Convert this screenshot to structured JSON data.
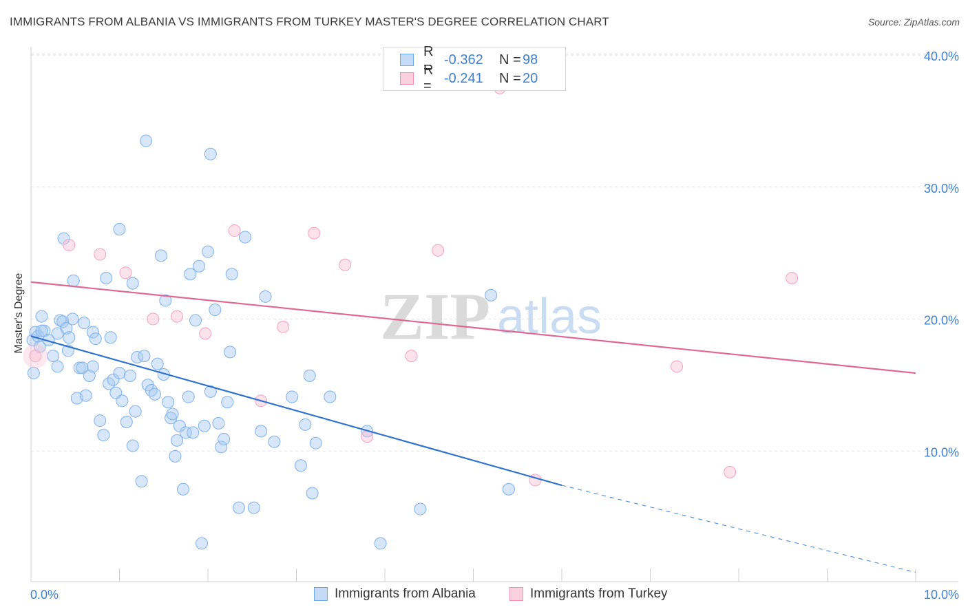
{
  "title": "IMMIGRANTS FROM ALBANIA VS IMMIGRANTS FROM TURKEY MASTER'S DEGREE CORRELATION CHART",
  "source": "Source: ZipAtlas.com",
  "watermark": {
    "zip": "ZIP",
    "atlas": "atlas"
  },
  "legend_box": {
    "rows": [
      {
        "r_label": "R =",
        "r_value": "-0.362",
        "n_label": "N =",
        "n_value": "98",
        "color": "#6fa8e8"
      },
      {
        "r_label": "R =",
        "r_value": "-0.241",
        "n_label": "N =",
        "n_value": "20",
        "color": "#f28fb0"
      }
    ]
  },
  "bottom_legend": [
    "Immigrants from Albania",
    "Immigrants from Turkey"
  ],
  "chart_data": {
    "type": "scatter",
    "title": "IMMIGRANTS FROM ALBANIA VS IMMIGRANTS FROM TURKEY MASTER'S DEGREE CORRELATION CHART",
    "xlabel": "",
    "ylabel": "Master's Degree",
    "xlim": [
      0,
      10
    ],
    "ylim": [
      0,
      40
    ],
    "x_tick_labels": [
      "0.0%",
      "10.0%"
    ],
    "y_tick_labels": [
      "10.0%",
      "20.0%",
      "30.0%",
      "40.0%"
    ],
    "y_ticks": [
      10,
      20,
      30,
      40
    ],
    "grid": true,
    "legend_position": "top-center",
    "series": [
      {
        "name": "Immigrants from Albania",
        "color": "#6fa8e8",
        "trend": {
          "x": [
            0.0,
            6.0
          ],
          "y": [
            18.6,
            7.3
          ],
          "dashed_to": [
            10.0,
            0.7
          ]
        },
        "points": [
          [
            0.02,
            18.3
          ],
          [
            0.05,
            18.9
          ],
          [
            0.08,
            18.6
          ],
          [
            0.1,
            17.8
          ],
          [
            0.12,
            20.1
          ],
          [
            0.15,
            19.0
          ],
          [
            0.2,
            18.3
          ],
          [
            0.25,
            17.1
          ],
          [
            0.3,
            16.3
          ],
          [
            0.33,
            19.8
          ],
          [
            0.36,
            19.7
          ],
          [
            0.4,
            19.2
          ],
          [
            0.43,
            18.5
          ],
          [
            0.47,
            19.9
          ],
          [
            0.52,
            13.9
          ],
          [
            0.55,
            16.2
          ],
          [
            0.58,
            16.2
          ],
          [
            0.62,
            14.1
          ],
          [
            0.66,
            15.6
          ],
          [
            0.7,
            18.9
          ],
          [
            0.73,
            18.4
          ],
          [
            0.78,
            12.2
          ],
          [
            0.82,
            11.1
          ],
          [
            0.85,
            23.0
          ],
          [
            0.88,
            15.0
          ],
          [
            0.9,
            18.5
          ],
          [
            0.93,
            15.3
          ],
          [
            0.96,
            14.3
          ],
          [
            1.0,
            15.8
          ],
          [
            1.03,
            13.7
          ],
          [
            1.08,
            12.1
          ],
          [
            1.12,
            15.6
          ],
          [
            1.15,
            10.3
          ],
          [
            1.18,
            12.9
          ],
          [
            1.2,
            17.0
          ],
          [
            1.25,
            7.6
          ],
          [
            1.28,
            17.1
          ],
          [
            1.32,
            14.9
          ],
          [
            1.36,
            14.5
          ],
          [
            1.4,
            14.2
          ],
          [
            1.43,
            16.5
          ],
          [
            1.47,
            24.7
          ],
          [
            1.5,
            15.7
          ],
          [
            1.52,
            21.3
          ],
          [
            1.55,
            13.6
          ],
          [
            1.58,
            12.4
          ],
          [
            1.6,
            12.7
          ],
          [
            1.63,
            9.5
          ],
          [
            1.65,
            10.7
          ],
          [
            1.68,
            11.8
          ],
          [
            1.72,
            7.0
          ],
          [
            1.75,
            11.3
          ],
          [
            1.78,
            14.0
          ],
          [
            1.8,
            23.3
          ],
          [
            1.83,
            11.3
          ],
          [
            1.86,
            19.8
          ],
          [
            1.9,
            23.9
          ],
          [
            1.93,
            2.9
          ],
          [
            1.96,
            11.8
          ],
          [
            2.0,
            25.0
          ],
          [
            2.03,
            14.4
          ],
          [
            2.08,
            20.6
          ],
          [
            2.12,
            12.0
          ],
          [
            2.15,
            10.2
          ],
          [
            2.18,
            10.8
          ],
          [
            2.22,
            13.6
          ],
          [
            2.25,
            17.4
          ],
          [
            2.27,
            23.3
          ],
          [
            2.35,
            5.6
          ],
          [
            2.42,
            26.1
          ],
          [
            2.52,
            5.6
          ],
          [
            2.6,
            11.4
          ],
          [
            2.65,
            21.6
          ],
          [
            2.75,
            10.6
          ],
          [
            2.95,
            14.0
          ],
          [
            3.05,
            8.8
          ],
          [
            3.1,
            11.9
          ],
          [
            3.15,
            15.6
          ],
          [
            3.18,
            6.7
          ],
          [
            3.22,
            10.5
          ],
          [
            3.38,
            14.0
          ],
          [
            3.8,
            11.4
          ],
          [
            3.95,
            2.9
          ],
          [
            4.4,
            5.5
          ],
          [
            5.2,
            21.7
          ],
          [
            5.4,
            7.0
          ],
          [
            1.3,
            33.4
          ],
          [
            2.03,
            32.4
          ],
          [
            1.0,
            26.7
          ],
          [
            0.37,
            26.0
          ],
          [
            0.48,
            22.8
          ],
          [
            0.7,
            16.3
          ],
          [
            0.12,
            19.0
          ],
          [
            0.3,
            18.8
          ],
          [
            0.42,
            17.5
          ],
          [
            0.6,
            19.6
          ],
          [
            1.15,
            22.6
          ],
          [
            0.03,
            15.8
          ]
        ]
      },
      {
        "name": "Immigrants from Turkey",
        "color": "#f28fb0",
        "trend": {
          "x": [
            0.0,
            10.0
          ],
          "y": [
            22.7,
            15.8
          ]
        },
        "points": [
          [
            0.05,
            17.1
          ],
          [
            0.43,
            25.5
          ],
          [
            0.78,
            24.8
          ],
          [
            1.07,
            23.4
          ],
          [
            1.38,
            19.9
          ],
          [
            1.65,
            20.1
          ],
          [
            1.97,
            18.8
          ],
          [
            2.3,
            26.6
          ],
          [
            2.6,
            13.7
          ],
          [
            2.85,
            19.3
          ],
          [
            3.2,
            26.4
          ],
          [
            3.55,
            24.0
          ],
          [
            3.8,
            11.0
          ],
          [
            4.3,
            17.1
          ],
          [
            4.6,
            25.1
          ],
          [
            5.3,
            37.4
          ],
          [
            5.7,
            7.7
          ],
          [
            7.3,
            16.3
          ],
          [
            7.9,
            8.3
          ],
          [
            8.6,
            23.0
          ]
        ]
      }
    ]
  }
}
